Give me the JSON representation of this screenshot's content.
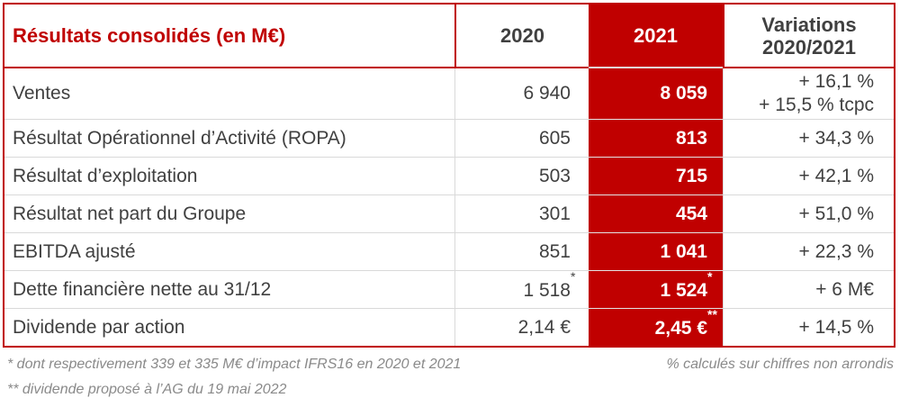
{
  "colors": {
    "accent": "#C00000",
    "text": "#404040",
    "muted": "#8A8A8A",
    "divider": "#D9D9D9",
    "on-accent": "#FFFFFF"
  },
  "table": {
    "title": "Résultats consolidés (en M€)",
    "columns": {
      "y2020": "2020",
      "y2021": "2021",
      "variations_line1": "Variations",
      "variations_line2": "2020/2021"
    },
    "rows": [
      {
        "label": "Ventes",
        "v2020": "6 940",
        "v2021": "8 059",
        "var1": "+ 16,1 %",
        "var2": "+ 15,5 % tcpc"
      },
      {
        "label": "Résultat Opérationnel d’Activité (ROPA)",
        "v2020": "605",
        "v2021": "813",
        "var1": "+ 34,3 %"
      },
      {
        "label": "Résultat d’exploitation",
        "v2020": "503",
        "v2021": "715",
        "var1": "+ 42,1 %"
      },
      {
        "label": "Résultat net part du Groupe",
        "v2020": "301",
        "v2021": "454",
        "var1": "+ 51,0 %"
      },
      {
        "label": "EBITDA ajusté",
        "v2020": "851",
        "v2021": "1 041",
        "var1": "+ 22,3 %"
      },
      {
        "label": "Dette financière nette au 31/12",
        "v2020": "1 518",
        "v2020_sup": "*",
        "v2021": "1 524",
        "v2021_sup": "*",
        "var1": "+ 6 M€"
      },
      {
        "label": "Dividende par action",
        "v2020": "2,14 €",
        "v2021": "2,45 €",
        "v2021_sup": "**",
        "var1": "+ 14,5 %"
      }
    ]
  },
  "footnotes": {
    "note_star": "* dont respectivement 339 et 335 M€ d’impact IFRS16 en 2020 et 2021",
    "note_right": "% calculés sur chiffres non arrondis",
    "note_double_star": "** dividende proposé à l’AG du 19 mai 2022"
  }
}
